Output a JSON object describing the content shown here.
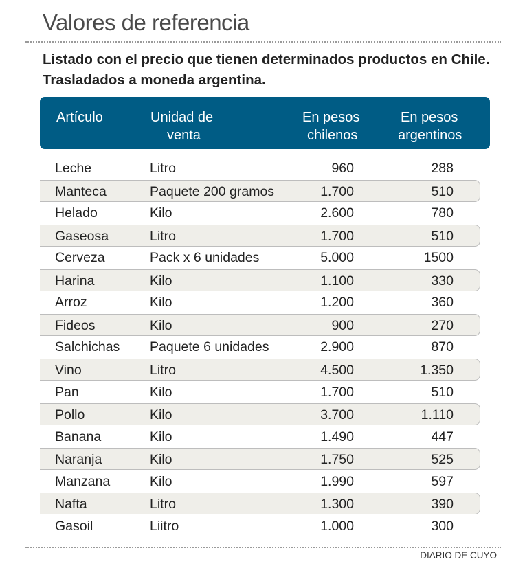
{
  "title": "Valores de referencia",
  "subtitle": "Listado con el precio que tienen determinados productos en Chile. Trasladados a moneda argentina.",
  "table": {
    "headers": {
      "articulo": "Artículo",
      "unidad_1": "Unidad de",
      "unidad_2": "venta",
      "chilenos_1": "En pesos",
      "chilenos_2": "chilenos",
      "argentinos_1": "En pesos",
      "argentinos_2": "argentinos"
    },
    "rows": [
      [
        "Leche",
        "Litro",
        "960",
        "288"
      ],
      [
        "Manteca",
        "Paquete 200 gramos",
        "1.700",
        "510"
      ],
      [
        "Helado",
        "Kilo",
        "2.600",
        "780"
      ],
      [
        "Gaseosa",
        "Litro",
        "1.700",
        "510"
      ],
      [
        "Cerveza",
        "Pack x 6 unidades",
        "5.000",
        "1500"
      ],
      [
        "Harina",
        "Kilo",
        "1.100",
        "330"
      ],
      [
        "Arroz",
        "Kilo",
        "1.200",
        "360"
      ],
      [
        "Fideos",
        "Kilo",
        "900",
        "270"
      ],
      [
        "Salchichas",
        "Paquete 6 unidades",
        "2.900",
        "870"
      ],
      [
        "Vino",
        "Litro",
        "4.500",
        "1.350"
      ],
      [
        "Pan",
        "Kilo",
        "1.700",
        "510"
      ],
      [
        "Pollo",
        "Kilo",
        "3.700",
        "1.110"
      ],
      [
        "Banana",
        "Kilo",
        "1.490",
        "447"
      ],
      [
        "Naranja",
        "Kilo",
        "1.750",
        "525"
      ],
      [
        "Manzana",
        "Kilo",
        "1.990",
        "597"
      ],
      [
        "Nafta",
        "Litro",
        "1.300",
        "390"
      ],
      [
        "Gasoil",
        "Liitro",
        "1.000",
        "300"
      ]
    ]
  },
  "footer": "DIARIO DE CUYO",
  "colors": {
    "header_bg": "#005c85",
    "shaded_row": "#efeee9"
  }
}
